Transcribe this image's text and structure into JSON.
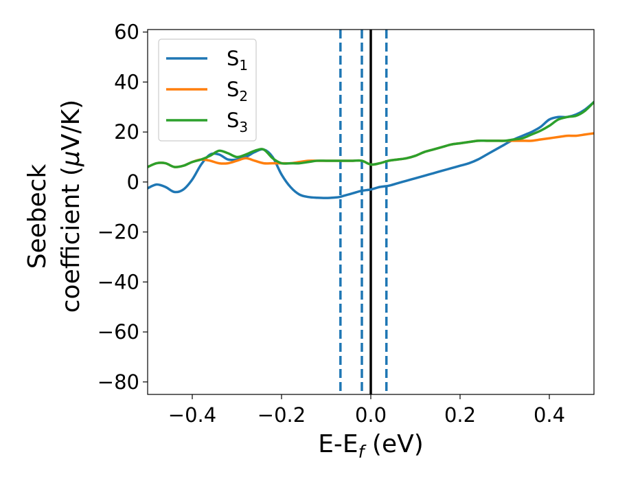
{
  "chart_data": {
    "type": "line",
    "xlabel": {
      "main": "E-E",
      "sub": "f",
      "suffix": " (eV)"
    },
    "ylabel": {
      "line1": "Seebeck",
      "line2_prefix": "coefficient  (",
      "mu": "μ",
      "line2_suffix": "V/K)"
    },
    "xlim": [
      -0.5,
      0.5
    ],
    "ylim": [
      -85,
      61
    ],
    "xticks": [
      -0.4,
      -0.2,
      0.0,
      0.2,
      0.4
    ],
    "xtick_labels": [
      "−0.4",
      "−0.2",
      "0.0",
      "0.2",
      "0.4"
    ],
    "yticks": [
      -80,
      -60,
      -40,
      -20,
      0,
      20,
      40,
      60
    ],
    "ytick_labels": [
      "−80",
      "−60",
      "−40",
      "−20",
      "0",
      "20",
      "40",
      "60"
    ],
    "legend_position": "top-left",
    "vlines": [
      {
        "x": 0.0,
        "style": "solid",
        "color": "#000000"
      },
      {
        "x": -0.068,
        "style": "dashed",
        "color": "#1f77b4"
      },
      {
        "x": -0.02,
        "style": "dashed",
        "color": "#1f77b4"
      },
      {
        "x": 0.035,
        "style": "dashed",
        "color": "#1f77b4"
      }
    ],
    "series": [
      {
        "label": "S",
        "sub": "1",
        "color": "#1f77b4",
        "x": [
          -0.5,
          -0.48,
          -0.46,
          -0.44,
          -0.42,
          -0.4,
          -0.38,
          -0.36,
          -0.34,
          -0.32,
          -0.3,
          -0.28,
          -0.26,
          -0.24,
          -0.22,
          -0.2,
          -0.18,
          -0.16,
          -0.14,
          -0.12,
          -0.1,
          -0.08,
          -0.07,
          -0.06,
          -0.04,
          -0.02,
          0.0,
          0.02,
          0.04,
          0.06,
          0.08,
          0.1,
          0.12,
          0.14,
          0.16,
          0.18,
          0.2,
          0.22,
          0.24,
          0.26,
          0.28,
          0.3,
          0.32,
          0.34,
          0.36,
          0.38,
          0.4,
          0.42,
          0.44,
          0.46,
          0.48,
          0.5
        ],
        "y": [
          -2.5,
          -1,
          -2,
          -4,
          -3,
          1,
          7,
          11,
          11,
          9,
          9,
          10,
          12,
          13,
          10,
          3,
          -2,
          -5,
          -6,
          -6.3,
          -6.4,
          -6.2,
          -6,
          -5.5,
          -4.5,
          -3.5,
          -3,
          -2,
          -1.5,
          -0.5,
          0.5,
          1.5,
          2.5,
          3.5,
          4.5,
          5.5,
          6.5,
          7.5,
          9,
          11,
          13,
          15,
          17,
          18.5,
          20,
          22,
          25,
          26,
          26,
          27,
          29,
          32
        ]
      },
      {
        "label": "S",
        "sub": "2",
        "color": "#ff7f0e",
        "x": [
          -0.5,
          -0.48,
          -0.46,
          -0.44,
          -0.42,
          -0.4,
          -0.38,
          -0.36,
          -0.34,
          -0.32,
          -0.3,
          -0.28,
          -0.26,
          -0.24,
          -0.22,
          -0.2,
          -0.18,
          -0.16,
          -0.14,
          -0.12,
          -0.1,
          -0.08,
          -0.06,
          -0.04,
          -0.02,
          0.0,
          0.02,
          0.04,
          0.06,
          0.08,
          0.1,
          0.12,
          0.14,
          0.16,
          0.18,
          0.2,
          0.22,
          0.24,
          0.26,
          0.28,
          0.3,
          0.32,
          0.34,
          0.36,
          0.38,
          0.4,
          0.42,
          0.44,
          0.46,
          0.48,
          0.5
        ],
        "y": [
          6,
          7.5,
          7.5,
          6,
          6.5,
          8,
          9,
          8.5,
          7.5,
          7.5,
          8.5,
          9.5,
          8.5,
          7.5,
          7.5,
          7.5,
          7.5,
          8,
          8.5,
          8.5,
          8.5,
          8.5,
          8.5,
          8.5,
          8.5,
          7,
          7.5,
          8.5,
          9,
          9.5,
          10.5,
          12,
          13,
          14,
          15,
          15.5,
          16,
          16.5,
          16.5,
          16.5,
          16.5,
          16.5,
          16.5,
          16.5,
          17,
          17.5,
          18,
          18.5,
          18.5,
          19,
          19.5
        ]
      },
      {
        "label": "S",
        "sub": "3",
        "color": "#2ca02c",
        "x": [
          -0.5,
          -0.48,
          -0.46,
          -0.44,
          -0.42,
          -0.4,
          -0.38,
          -0.36,
          -0.34,
          -0.32,
          -0.3,
          -0.28,
          -0.26,
          -0.24,
          -0.22,
          -0.2,
          -0.18,
          -0.16,
          -0.14,
          -0.12,
          -0.1,
          -0.08,
          -0.06,
          -0.04,
          -0.02,
          0.0,
          0.02,
          0.04,
          0.06,
          0.08,
          0.1,
          0.12,
          0.14,
          0.16,
          0.18,
          0.2,
          0.22,
          0.24,
          0.26,
          0.28,
          0.3,
          0.32,
          0.34,
          0.36,
          0.38,
          0.4,
          0.42,
          0.44,
          0.46,
          0.48,
          0.5
        ],
        "y": [
          6,
          7.5,
          7.5,
          6,
          6.5,
          8,
          9,
          10.5,
          12.5,
          11.5,
          10,
          11,
          12.5,
          13,
          9.5,
          7.5,
          7.5,
          7.5,
          8,
          8.5,
          8.5,
          8.5,
          8.5,
          8.5,
          8.5,
          7,
          7.5,
          8.5,
          9,
          9.5,
          10.5,
          12,
          13,
          14,
          15,
          15.5,
          16,
          16.5,
          16.5,
          16.5,
          16.5,
          17,
          17.5,
          19,
          20.5,
          22.5,
          25,
          26,
          26.5,
          28.5,
          32
        ]
      }
    ]
  }
}
